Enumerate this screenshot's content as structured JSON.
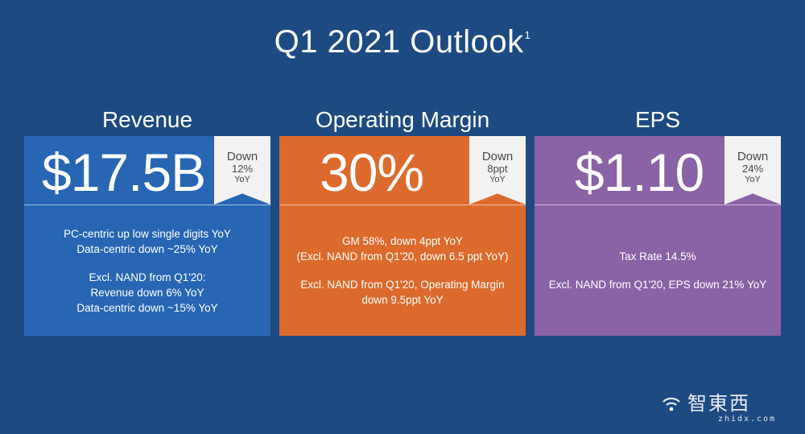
{
  "slide": {
    "title": "Q1 2021 Outlook",
    "title_footnote": "1"
  },
  "cards": [
    {
      "heading": "Revenue",
      "value": "$17.5B",
      "badge": [
        "Down",
        "12%",
        "YoY"
      ],
      "color": "#2866b4",
      "lines": [
        "PC-centric up low single digits YoY",
        "Data-centric down ~25% YoY",
        "",
        "Excl. NAND from Q1'20:",
        "Revenue down 6% YoY",
        "Data-centric down ~15% YoY"
      ]
    },
    {
      "heading": "Operating Margin",
      "value": "30%",
      "badge": [
        "Down",
        "8ppt",
        "YoY"
      ],
      "color": "#dd6a2d",
      "lines": [
        "GM 58%, down 4ppt YoY",
        "(Excl. NAND from Q1'20, down 6.5 ppt YoY)",
        "",
        "Excl. NAND from Q1'20, Operating Margin",
        "down 9.5ppt YoY"
      ]
    },
    {
      "heading": "EPS",
      "value": "$1.10",
      "badge": [
        "Down",
        "24%",
        "YoY"
      ],
      "color": "#8a62a6",
      "lines": [
        "Tax Rate 14.5%",
        "",
        "Excl. NAND from Q1'20, EPS down 21% YoY"
      ]
    }
  ],
  "watermark": {
    "text": "智東西",
    "sub": "zhidx.com",
    "icon": "wifi-signal-icon"
  },
  "colors": {
    "background": "#1e4a82",
    "badge": "#f2f2f2"
  }
}
